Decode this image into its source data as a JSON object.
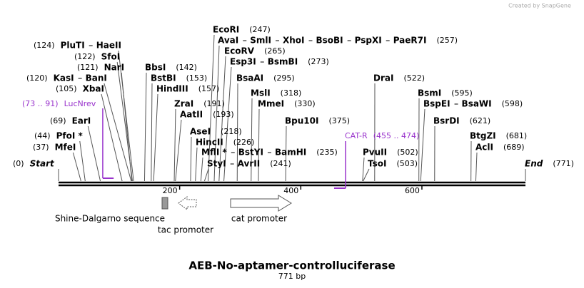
{
  "watermark": "Created by SnapGene",
  "title": "AEB-No-aptamer-controlluciferase",
  "subtitle": "771 bp",
  "axis": {
    "length": 771,
    "ticks": [
      200,
      400,
      600
    ]
  },
  "sites": [
    {
      "names": [
        "EcoRI"
      ],
      "pos": {
        "value": 247,
        "label": "(247)"
      }
    },
    {
      "names": [
        "AvaI",
        "SmlI",
        "XhoI",
        "BsoBI",
        "PspXI",
        "PaeR7I"
      ],
      "pos": {
        "value": 257,
        "label": "(257)"
      }
    },
    {
      "names": [
        "PluTI",
        "HaeII"
      ],
      "pos": {
        "value": 124,
        "label": "(124)"
      }
    },
    {
      "names": [
        "EcoRV"
      ],
      "pos": {
        "value": 265,
        "label": "(265)"
      }
    },
    {
      "names": [
        "SfoI"
      ],
      "pos": {
        "value": 122,
        "label": "(122)"
      }
    },
    {
      "names": [
        "Esp3I",
        "BsmBI"
      ],
      "pos": {
        "value": 273,
        "label": "(273)"
      }
    },
    {
      "names": [
        "NarI"
      ],
      "pos": {
        "value": 121,
        "label": "(121)"
      }
    },
    {
      "names": [
        "BbsI"
      ],
      "pos": {
        "value": 142,
        "label": "(142)"
      }
    },
    {
      "names": [
        "KasI",
        "BanI"
      ],
      "pos": {
        "value": 120,
        "label": "(120)"
      }
    },
    {
      "names": [
        "BstBI"
      ],
      "pos": {
        "value": 153,
        "label": "(153)"
      }
    },
    {
      "names": [
        "BsaAI"
      ],
      "pos": {
        "value": 295,
        "label": "(295)"
      }
    },
    {
      "names": [
        "DraI"
      ],
      "pos": {
        "value": 522,
        "label": "(522)"
      }
    },
    {
      "names": [
        "XbaI"
      ],
      "pos": {
        "value": 105,
        "label": "(105)"
      }
    },
    {
      "names": [
        "HindIII"
      ],
      "pos": {
        "value": 157,
        "label": "(157)"
      }
    },
    {
      "names": [
        "MslI"
      ],
      "pos": {
        "value": 318,
        "label": "(318)"
      }
    },
    {
      "names": [
        "BsmI"
      ],
      "pos": {
        "value": 595,
        "label": "(595)"
      }
    },
    {
      "names": [
        "ZraI"
      ],
      "pos": {
        "value": 191,
        "label": "(191)"
      }
    },
    {
      "names": [
        "MmeI"
      ],
      "pos": {
        "value": 330,
        "label": "(330)"
      }
    },
    {
      "names": [
        "BspEI",
        "BsaWI"
      ],
      "pos": {
        "value": 598,
        "label": "(598)"
      }
    },
    {
      "names": [
        "AatII"
      ],
      "pos": {
        "value": 193,
        "label": "(193)"
      }
    },
    {
      "names": [
        "EarI"
      ],
      "pos": {
        "value": 69,
        "label": "(69)"
      }
    },
    {
      "names": [
        "Bpu10I"
      ],
      "pos": {
        "value": 375,
        "label": "(375)"
      }
    },
    {
      "names": [
        "BsrDI"
      ],
      "pos": {
        "value": 621,
        "label": "(621)"
      }
    },
    {
      "names": [
        "AseI"
      ],
      "pos": {
        "value": 218,
        "label": "(218)"
      }
    },
    {
      "names": [
        "PfoI *"
      ],
      "pos": {
        "value": 44,
        "label": "(44)"
      }
    },
    {
      "names": [
        "BtgZI"
      ],
      "pos": {
        "value": 681,
        "label": "(681)"
      }
    },
    {
      "names": [
        "HincII"
      ],
      "pos": {
        "value": 226,
        "label": "(226)"
      }
    },
    {
      "names": [
        "MfeI"
      ],
      "pos": {
        "value": 37,
        "label": "(37)"
      }
    },
    {
      "names": [
        "AclI"
      ],
      "pos": {
        "value": 689,
        "label": "(689)"
      }
    },
    {
      "names": [
        "MflI *",
        "BstYI",
        "BamHI"
      ],
      "pos": {
        "value": 235,
        "label": "(235)"
      }
    },
    {
      "names": [
        "PvuII"
      ],
      "pos": {
        "value": 502,
        "label": "(502)"
      }
    },
    {
      "names": [
        "Start"
      ],
      "pos": {
        "value": 0,
        "label": "(0)"
      }
    },
    {
      "names": [
        "StyI",
        "AvrII"
      ],
      "pos": {
        "value": 241,
        "label": "(241)"
      }
    },
    {
      "names": [
        "TsoI"
      ],
      "pos": {
        "value": 503,
        "label": "(503)"
      }
    },
    {
      "names": [
        "End"
      ],
      "pos": {
        "value": 771,
        "label": "(771)"
      }
    }
  ],
  "primers": [
    {
      "name": "LucNrev",
      "start": 73,
      "end": 91,
      "label": "(73 .. 91)"
    },
    {
      "name": "CAT-R",
      "start": 455,
      "end": 474,
      "label": "(455 .. 474)"
    }
  ],
  "features": [
    "Shine-Dalgarno sequence",
    "tac promoter",
    "cat promoter"
  ]
}
